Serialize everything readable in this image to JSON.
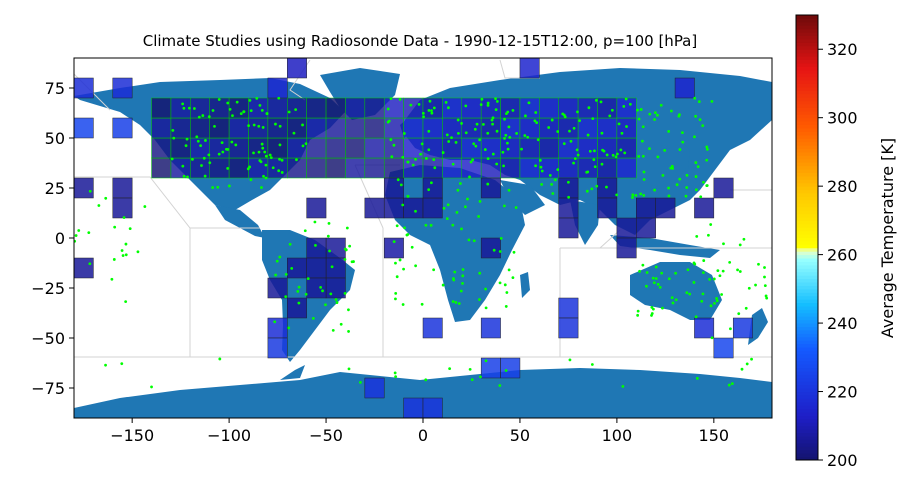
{
  "chart_data": {
    "type": "heatmap",
    "title": "Climate Studies using Radiosonde Data - 1990-12-15T12:00, p=100 [hPa]",
    "xlim": [
      -180,
      180
    ],
    "ylim": [
      -90,
      90
    ],
    "x_ticks": [
      -150,
      -100,
      -50,
      0,
      50,
      100,
      150
    ],
    "x_tick_labels": [
      "−150",
      "−100",
      "−50",
      "0",
      "50",
      "100",
      "150"
    ],
    "y_ticks": [
      75,
      50,
      25,
      0,
      -25,
      -50,
      -75
    ],
    "y_tick_labels": [
      "75",
      "50",
      "25",
      "0",
      "−25",
      "−50",
      "−75"
    ],
    "cell_size_deg": 10,
    "colorbar": {
      "label": "Average Temperature [K]",
      "range": [
        200,
        330
      ],
      "ticks": [
        200,
        220,
        240,
        260,
        280,
        300,
        320
      ],
      "tick_labels": [
        "200",
        "220",
        "240",
        "260",
        "280",
        "300",
        "320"
      ]
    },
    "cells": [
      {
        "lon": -175,
        "lat": 75,
        "value": 218
      },
      {
        "lon": -155,
        "lat": 75,
        "value": 218
      },
      {
        "lon": -75,
        "lat": 75,
        "value": 216
      },
      {
        "lon": -65,
        "lat": 85,
        "value": 212
      },
      {
        "lon": 55,
        "lat": 85,
        "value": 215
      },
      {
        "lon": 135,
        "lat": 75,
        "value": 215
      },
      {
        "lon": -175,
        "lat": 55,
        "value": 226
      },
      {
        "lon": -155,
        "lat": 55,
        "value": 224
      },
      {
        "lon": -175,
        "lat": 25,
        "value": 206
      },
      {
        "lon": -155,
        "lat": 25,
        "value": 206
      },
      {
        "lon": -155,
        "lat": 15,
        "value": 206
      },
      {
        "lon": -175,
        "lat": -15,
        "value": 206
      },
      {
        "lon": -45,
        "lat": -5,
        "value": 206
      },
      {
        "lon": -55,
        "lat": -5,
        "value": 206
      },
      {
        "lon": -45,
        "lat": -15,
        "value": 206
      },
      {
        "lon": -55,
        "lat": -15,
        "value": 206
      },
      {
        "lon": -65,
        "lat": -15,
        "value": 206
      },
      {
        "lon": -45,
        "lat": -25,
        "value": 206
      },
      {
        "lon": -55,
        "lat": -25,
        "value": 206
      },
      {
        "lon": -75,
        "lat": -25,
        "value": 206
      },
      {
        "lon": -65,
        "lat": -35,
        "value": 206
      },
      {
        "lon": -75,
        "lat": -45,
        "value": 218
      },
      {
        "lon": -75,
        "lat": -55,
        "value": 222
      },
      {
        "lon": -15,
        "lat": -5,
        "value": 208
      },
      {
        "lon": 35,
        "lat": -5,
        "value": 206
      },
      {
        "lon": 5,
        "lat": -45,
        "value": 220
      },
      {
        "lon": 35,
        "lat": -45,
        "value": 220
      },
      {
        "lon": 75,
        "lat": -35,
        "value": 220
      },
      {
        "lon": 75,
        "lat": -45,
        "value": 220
      },
      {
        "lon": 145,
        "lat": -45,
        "value": 218
      },
      {
        "lon": 165,
        "lat": -45,
        "value": 222
      },
      {
        "lon": 155,
        "lat": -55,
        "value": 226
      },
      {
        "lon": 35,
        "lat": -65,
        "value": 224
      },
      {
        "lon": 45,
        "lat": -65,
        "value": 224
      },
      {
        "lon": -25,
        "lat": -75,
        "value": 220
      },
      {
        "lon": -5,
        "lat": -85,
        "value": 220
      },
      {
        "lon": 5,
        "lat": -85,
        "value": 220
      },
      {
        "lon": -55,
        "lat": 15,
        "value": 206
      },
      {
        "lon": -25,
        "lat": 15,
        "value": 206
      },
      {
        "lon": -15,
        "lat": 15,
        "value": 206
      },
      {
        "lon": -5,
        "lat": 15,
        "value": 206
      },
      {
        "lon": 5,
        "lat": 15,
        "value": 206
      },
      {
        "lon": -15,
        "lat": 25,
        "value": 206
      },
      {
        "lon": 5,
        "lat": 25,
        "value": 206
      },
      {
        "lon": 35,
        "lat": 25,
        "value": 206
      },
      {
        "lon": 75,
        "lat": 25,
        "value": 206
      },
      {
        "lon": 75,
        "lat": 15,
        "value": 206
      },
      {
        "lon": 75,
        "lat": 5,
        "value": 206
      },
      {
        "lon": 95,
        "lat": 25,
        "value": 206
      },
      {
        "lon": 95,
        "lat": 15,
        "value": 206
      },
      {
        "lon": 145,
        "lat": 15,
        "value": 206
      },
      {
        "lon": 155,
        "lat": 25,
        "value": 206
      },
      {
        "lon": 115,
        "lat": 15,
        "value": 206
      },
      {
        "lon": 125,
        "lat": 15,
        "value": 206
      },
      {
        "lon": 105,
        "lat": 5,
        "value": 206
      },
      {
        "lon": 115,
        "lat": 5,
        "value": 206
      },
      {
        "lon": 105,
        "lat": -5,
        "value": 206
      }
    ],
    "grids": [
      {
        "lon_from": -140,
        "lon_to": 110,
        "lat_from": 30,
        "lat_to": 70,
        "value": 212
      }
    ],
    "stations_visible": true
  },
  "colors": {
    "station": "#00ff00",
    "ocean_land": "#1f77b4",
    "border": "#d3d3d3"
  }
}
